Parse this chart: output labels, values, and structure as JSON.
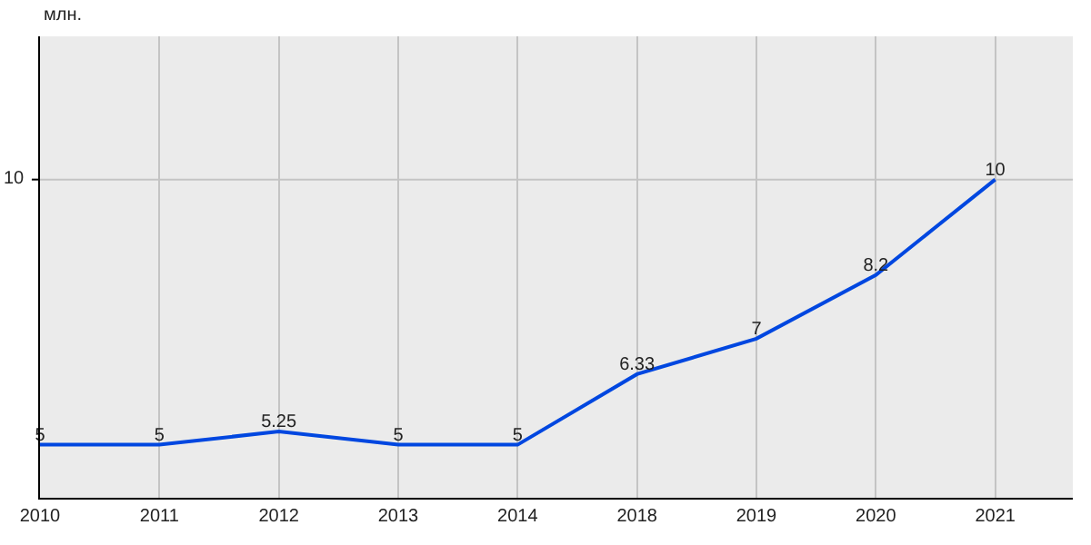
{
  "chart_data": {
    "type": "line",
    "ylabel": "млн.",
    "categories": [
      "2010",
      "2011",
      "2012",
      "2013",
      "2014",
      "2018",
      "2019",
      "2020",
      "2021"
    ],
    "series": [
      {
        "color": "#0047e0",
        "values": [
          5,
          5,
          5.25,
          5,
          5,
          6.33,
          7,
          8.2,
          10
        ]
      }
    ],
    "ylim": [
      4,
      12.7
    ],
    "ref_lines": [
      {
        "axis": "y",
        "value": 10,
        "label": "10",
        "color": "#c4c4c4"
      }
    ],
    "grid": "x",
    "data_labels": true,
    "marker": "none",
    "line_style": "solid",
    "legend": false
  }
}
